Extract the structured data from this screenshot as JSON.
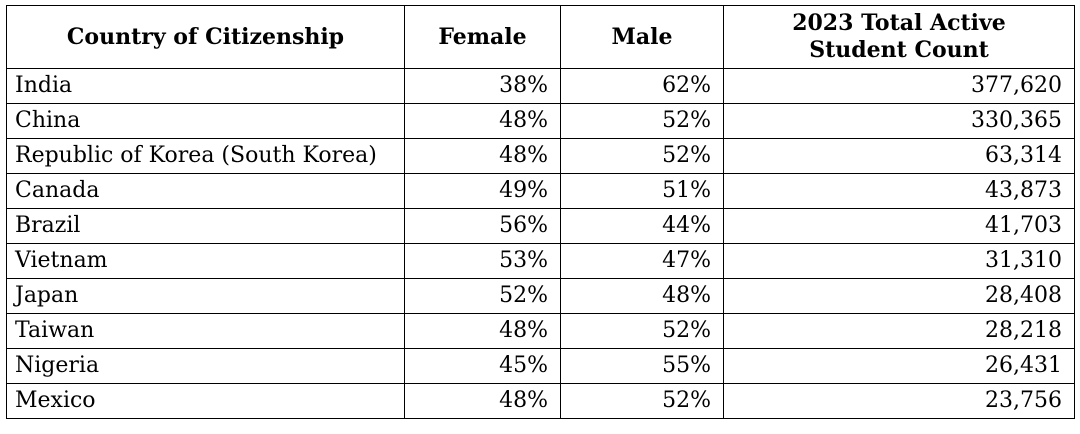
{
  "table": {
    "headers": {
      "country": "Country of Citizenship",
      "female": "Female",
      "male": "Male",
      "total_line1": "2023 Total Active",
      "total_line2": "Student Count"
    },
    "rows": [
      {
        "country": "India",
        "female": "38%",
        "male": "62%",
        "total": "377,620"
      },
      {
        "country": "China",
        "female": "48%",
        "male": "52%",
        "total": "330,365"
      },
      {
        "country": "Republic of Korea (South Korea)",
        "female": "48%",
        "male": "52%",
        "total": "63,314"
      },
      {
        "country": "Canada",
        "female": "49%",
        "male": "51%",
        "total": "43,873"
      },
      {
        "country": "Brazil",
        "female": "56%",
        "male": "44%",
        "total": "41,703"
      },
      {
        "country": "Vietnam",
        "female": "53%",
        "male": "47%",
        "total": "31,310"
      },
      {
        "country": "Japan",
        "female": "52%",
        "male": "48%",
        "total": "28,408"
      },
      {
        "country": "Taiwan",
        "female": "48%",
        "male": "52%",
        "total": "28,218"
      },
      {
        "country": "Nigeria",
        "female": "45%",
        "male": "55%",
        "total": "26,431"
      },
      {
        "country": "Mexico",
        "female": "48%",
        "male": "52%",
        "total": "23,756"
      }
    ]
  }
}
